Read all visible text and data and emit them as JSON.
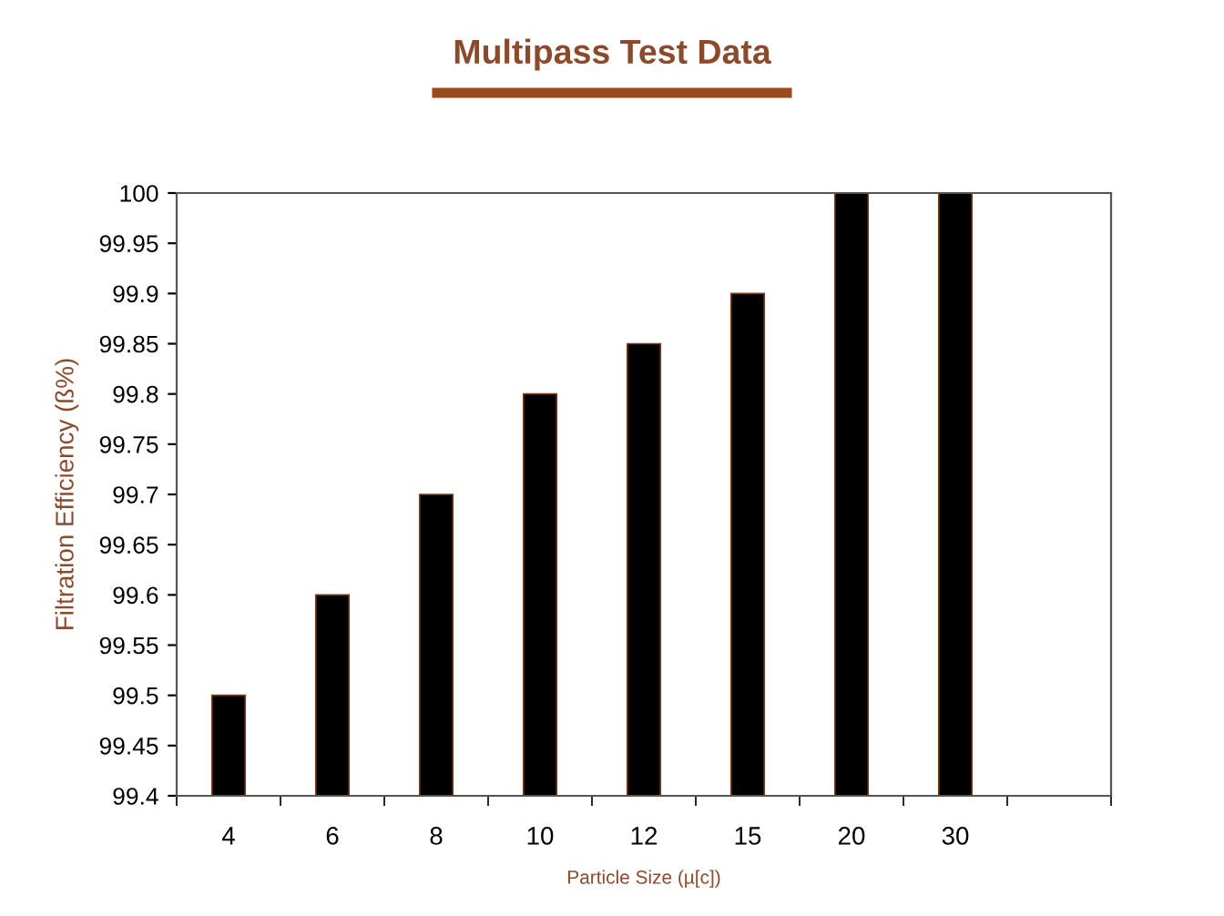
{
  "chart_data": {
    "type": "bar",
    "title": "Multipass Test Data",
    "xlabel": "Particle Size (µ[c])",
    "ylabel": "Filtration Efficiency (ß%)",
    "categories": [
      "4",
      "6",
      "8",
      "10",
      "12",
      "15",
      "20",
      "30",
      null
    ],
    "series": [
      {
        "color": "#000000",
        "values": [
          99.5,
          99.6,
          99.7,
          99.8,
          99.85,
          99.9,
          100,
          100,
          null
        ]
      }
    ],
    "ylim": [
      99.4,
      100
    ],
    "yticks": [
      99.4,
      99.45,
      99.5,
      99.55,
      99.6,
      99.65,
      99.7,
      99.75,
      99.8,
      99.85,
      99.9,
      99.95,
      100
    ],
    "grid": false
  }
}
